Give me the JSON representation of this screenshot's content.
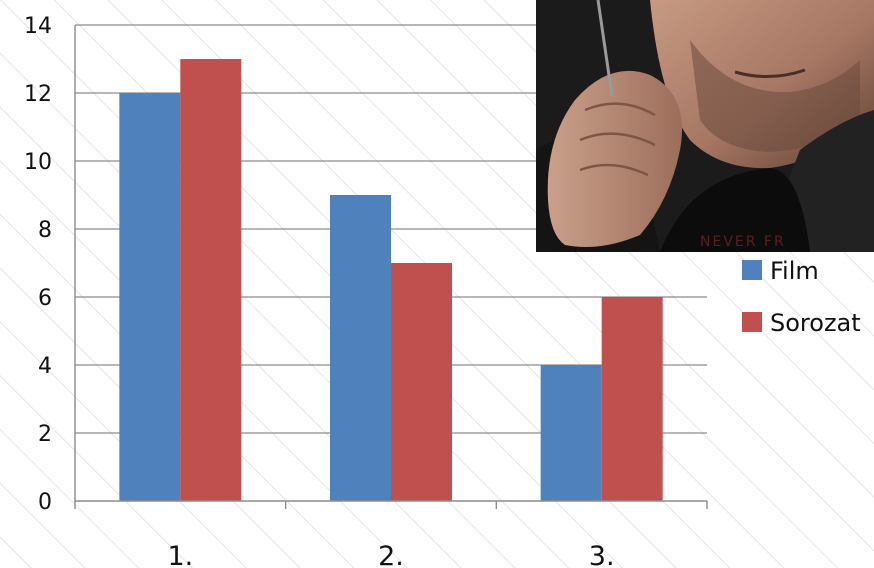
{
  "chart_data": {
    "type": "bar",
    "categories": [
      "1.",
      "2.",
      "3."
    ],
    "series": [
      {
        "name": "Film",
        "values": [
          12,
          9,
          4
        ],
        "color": "#4F81BD"
      },
      {
        "name": "Sorozat",
        "values": [
          13,
          7,
          6
        ],
        "color": "#C0504D"
      }
    ],
    "ylim": [
      0,
      14
    ],
    "yticks": [
      "0",
      "2",
      "4",
      "6",
      "8",
      "10",
      "12",
      "14"
    ],
    "grid": true,
    "legend_position": "right",
    "background": "diagonal-hatch"
  },
  "photo": {
    "description_icon": "man-with-stubble-photo",
    "shirt_text": "NEVER FR"
  }
}
